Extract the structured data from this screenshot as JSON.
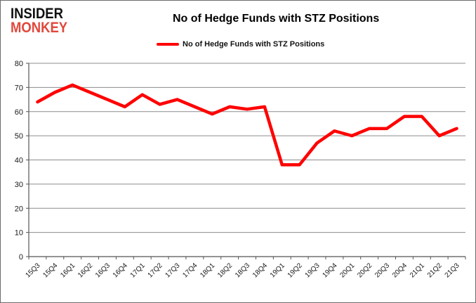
{
  "logo": {
    "line1": "INSIDER",
    "line2": "MONKEY"
  },
  "title": "No of Hedge Funds with STZ Positions",
  "legend": {
    "label": "No of Hedge Funds with STZ Positions",
    "color": "#ff0000"
  },
  "colors": {
    "series_line": "#ff0000",
    "gridline": "#8c8c8c",
    "axis": "#555555",
    "text": "#1a1a1a",
    "logo_accent": "#e0483c",
    "background": "#ffffff"
  },
  "chart_data": {
    "type": "line",
    "title": "No of Hedge Funds with STZ Positions",
    "xlabel": "",
    "ylabel": "",
    "ylim": [
      0,
      80
    ],
    "yticks": [
      0,
      10,
      20,
      30,
      40,
      50,
      60,
      70,
      80
    ],
    "grid": "horizontal",
    "legend_position": "top",
    "categories": [
      "15Q3",
      "15Q4",
      "16Q1",
      "16Q2",
      "16Q3",
      "16Q4",
      "17Q1",
      "17Q2",
      "17Q3",
      "17Q4",
      "18Q1",
      "18Q2",
      "18Q3",
      "18Q4",
      "19Q1",
      "19Q2",
      "19Q3",
      "19Q4",
      "20Q1",
      "20Q2",
      "20Q3",
      "20Q4",
      "21Q1",
      "21Q2",
      "21Q3"
    ],
    "series": [
      {
        "name": "No of Hedge Funds with STZ Positions",
        "color": "#ff0000",
        "values": [
          64,
          68,
          71,
          68,
          65,
          62,
          67,
          63,
          65,
          62,
          59,
          62,
          61,
          62,
          38,
          38,
          47,
          52,
          50,
          53,
          53,
          58,
          58,
          50,
          53
        ]
      }
    ]
  }
}
